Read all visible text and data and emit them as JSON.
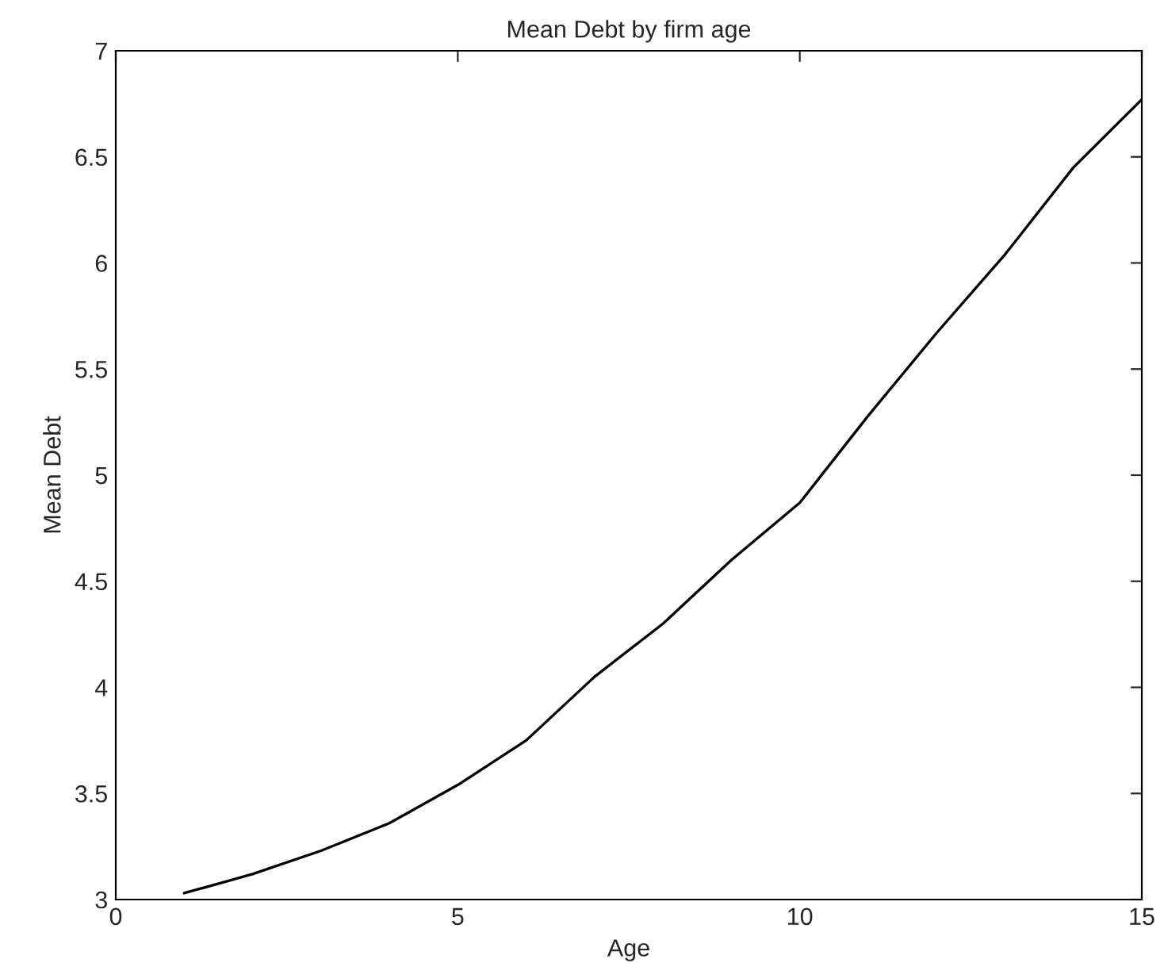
{
  "chart_data": {
    "type": "line",
    "title": "Mean Debt by firm age",
    "xlabel": "Age",
    "ylabel": "Mean Debt",
    "x": [
      1,
      2,
      3,
      4,
      5,
      6,
      7,
      8,
      9,
      10,
      11,
      12,
      13,
      14,
      15
    ],
    "series": [
      {
        "color": "#000000",
        "values": [
          3.03,
          3.12,
          3.23,
          3.36,
          3.54,
          3.75,
          4.05,
          4.3,
          4.6,
          4.87,
          5.28,
          5.67,
          6.04,
          6.45,
          6.77
        ]
      }
    ],
    "xlim": [
      0,
      15
    ],
    "ylim": [
      3,
      7
    ],
    "xticks": [
      0,
      5,
      10,
      15
    ],
    "yticks": [
      3,
      3.5,
      4,
      4.5,
      5,
      5.5,
      6,
      6.5,
      7
    ],
    "grid": false,
    "legend": false,
    "marker": "none",
    "line_style": "solid"
  }
}
